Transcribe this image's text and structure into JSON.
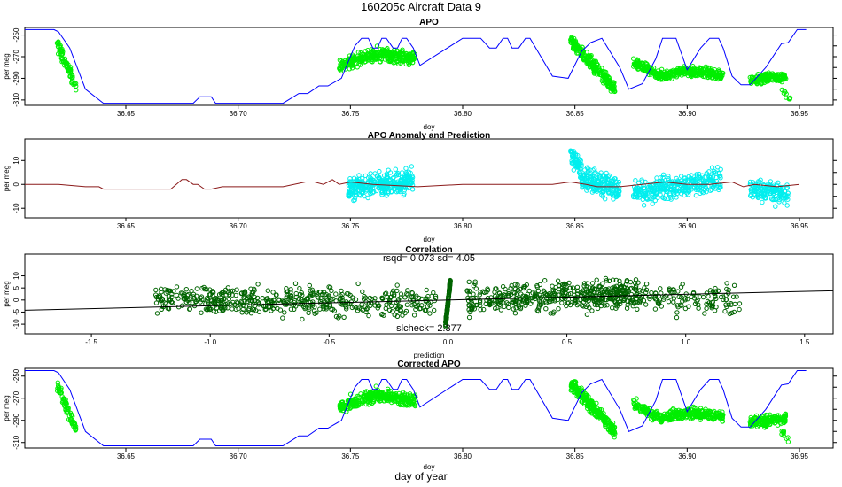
{
  "figure": {
    "title": "160205c   Aircraft Data 9",
    "xlabel": "day of year"
  },
  "chart_data": [
    {
      "id": "apo",
      "type": "scatter",
      "title": "APO",
      "xlabel": "doy",
      "ylabel": "per meg",
      "xlim": [
        36.605,
        36.965
      ],
      "ylim": [
        -315,
        -243
      ],
      "xticks": [
        36.65,
        36.7,
        36.75,
        36.8,
        36.85,
        36.9,
        36.95
      ],
      "yticks": [
        -250,
        -270,
        -290,
        -310
      ],
      "right_ticks": [
        -250,
        -260,
        -270,
        -280,
        -290,
        -300,
        -310
      ],
      "series": [
        {
          "kind": "line",
          "color": "#0000ff",
          "x": [
            36.605,
            36.618,
            36.62,
            36.625,
            36.632,
            36.64,
            36.68,
            36.683,
            36.688,
            36.69,
            36.72,
            36.727,
            36.731,
            36.736,
            36.74,
            36.746,
            36.75,
            36.752,
            36.755,
            36.758,
            36.76,
            36.762,
            36.764,
            36.766,
            36.769,
            36.771,
            36.773,
            36.775,
            36.778,
            36.781,
            36.8,
            36.808,
            36.812,
            36.815,
            36.818,
            36.82,
            36.822,
            36.825,
            36.828,
            36.83,
            36.84,
            36.847,
            36.853,
            36.857,
            36.862,
            36.87,
            36.874,
            36.88,
            36.886,
            36.889,
            36.895,
            36.9,
            36.906,
            36.91,
            36.914,
            36.916,
            36.92,
            36.924,
            36.928,
            36.935,
            36.942,
            36.945,
            36.949,
            36.953
          ],
          "y": [
            -245,
            -245,
            -247,
            -262,
            -300,
            -313,
            -313,
            -307,
            -307,
            -313,
            -313,
            -304,
            -304,
            -297,
            -297,
            -290,
            -270,
            -260,
            -253,
            -253,
            -262,
            -262,
            -253,
            -253,
            -262,
            -262,
            -253,
            -253,
            -262,
            -278,
            -253,
            -253,
            -262,
            -262,
            -253,
            -253,
            -262,
            -262,
            -253,
            -253,
            -288,
            -290,
            -265,
            -257,
            -253,
            -280,
            -300,
            -295,
            -272,
            -253,
            -253,
            -282,
            -262,
            -253,
            -253,
            -262,
            -288,
            -296,
            -296,
            -280,
            -258,
            -257,
            -245,
            -245
          ]
        },
        {
          "kind": "points",
          "color": "#00ee00",
          "clusters": [
            {
              "x0": 36.619,
              "x1": 36.628,
              "ys": [
                [
                  -257,
                  -298
                ]
              ],
              "n": 80,
              "spread": 5
            },
            {
              "x0": 36.745,
              "x1": 36.779,
              "ys": [
                [
                  -278,
                  -267
                ],
                [
                  -267,
                  -272
                ]
              ],
              "n": 350,
              "spread": 5
            },
            {
              "x0": 36.848,
              "x1": 36.868,
              "ys": [
                [
                  -256,
                  -300
                ]
              ],
              "n": 260,
              "spread": 5
            },
            {
              "x0": 36.876,
              "x1": 36.9,
              "ys": [
                [
                  -275,
                  -288
                ],
                [
                  -288,
                  -283
                ]
              ],
              "n": 220,
              "spread": 4
            },
            {
              "x0": 36.9,
              "x1": 36.916,
              "ys": [
                [
                  -283,
                  -287
                ]
              ],
              "n": 150,
              "spread": 4
            },
            {
              "x0": 36.928,
              "x1": 36.944,
              "ys": [
                [
                  -292,
                  -288
                ]
              ],
              "n": 160,
              "spread": 4
            },
            {
              "x0": 36.942,
              "x1": 36.946,
              "ys": [
                [
                  -300,
                  -310
                ]
              ],
              "n": 10,
              "spread": 3
            }
          ]
        }
      ]
    },
    {
      "id": "anomaly",
      "type": "scatter",
      "title": "APO Anomaly and Prediction",
      "xlabel": "doy",
      "ylabel": "per meg",
      "xlim": [
        36.605,
        36.965
      ],
      "ylim": [
        -14,
        19
      ],
      "xticks": [
        36.65,
        36.7,
        36.75,
        36.8,
        36.85,
        36.9,
        36.95
      ],
      "yticks": [
        10,
        0,
        -10
      ],
      "right_ticks": [
        10,
        5,
        0,
        -5,
        -10
      ],
      "series": [
        {
          "kind": "line",
          "color": "#8b1a1a",
          "x": [
            36.605,
            36.62,
            36.632,
            36.638,
            36.64,
            36.67,
            36.675,
            36.677,
            36.68,
            36.682,
            36.685,
            36.688,
            36.693,
            36.7,
            36.72,
            36.73,
            36.734,
            36.738,
            36.742,
            36.745,
            36.75,
            36.76,
            36.78,
            36.8,
            36.82,
            36.84,
            36.848,
            36.855,
            36.86,
            36.87,
            36.88,
            36.89,
            36.9,
            36.91,
            36.92,
            36.925,
            36.93,
            36.94,
            36.95
          ],
          "y": [
            0,
            0,
            -1,
            -1,
            -2,
            -2,
            2,
            2,
            0,
            0,
            -2,
            -2,
            -1,
            -1,
            -1,
            1,
            1,
            0,
            2,
            0,
            1,
            0,
            -1,
            0,
            0,
            0,
            1,
            0,
            -1,
            -1,
            0,
            1,
            0,
            0,
            1,
            -1,
            0,
            -1,
            0
          ]
        },
        {
          "kind": "points",
          "color": "#00eeee",
          "clusters": [
            {
              "x0": 36.749,
              "x1": 36.778,
              "ys": [
                [
                  -2,
                  2
                ]
              ],
              "n": 330,
              "spread": 4
            },
            {
              "x0": 36.848,
              "x1": 36.853,
              "ys": [
                [
                  13,
                  6
                ]
              ],
              "n": 60,
              "spread": 4
            },
            {
              "x0": 36.853,
              "x1": 36.87,
              "ys": [
                [
                  3,
                  -2
                ]
              ],
              "n": 200,
              "spread": 4
            },
            {
              "x0": 36.876,
              "x1": 36.915,
              "ys": [
                [
                  -4,
                  2
                ]
              ],
              "n": 330,
              "spread": 4
            },
            {
              "x0": 36.928,
              "x1": 36.945,
              "ys": [
                [
                  -2,
                  -4
                ]
              ],
              "n": 150,
              "spread": 4
            }
          ]
        }
      ]
    },
    {
      "id": "correlation",
      "type": "scatter",
      "title": "Correlation",
      "xlabel": "prediction",
      "ylabel": "per meg",
      "xlim": [
        -1.78,
        1.62
      ],
      "ylim": [
        -14,
        19
      ],
      "xticks": [
        -1.5,
        -1.0,
        -0.5,
        0.0,
        0.5,
        1.0,
        1.5
      ],
      "yticks": [
        10,
        5,
        0,
        -5,
        -10
      ],
      "annotations": {
        "stats": "rsqd= 0.073 sd= 4.05",
        "slope": "slcheck= 2.377"
      },
      "fit_line": {
        "slope": 2.377,
        "intercept": 0,
        "color": "#000000"
      },
      "series": [
        {
          "kind": "points",
          "color": "#006400",
          "clusters": [
            {
              "x0": -1.23,
              "x1": -0.05,
              "ys": [
                [
                  0,
                  -1
                ]
              ],
              "n": 520,
              "spread": 5
            },
            {
              "x0": 0.08,
              "x1": 0.8,
              "ys": [
                [
                  0,
                  3
                ]
              ],
              "n": 420,
              "spread": 5
            },
            {
              "x0": 0.6,
              "x1": 1.23,
              "ys": [
                [
                  3,
                  -1
                ]
              ],
              "n": 200,
              "spread": 5
            },
            {
              "x0": -0.01,
              "x1": 0.01,
              "ys": [
                [
                  -10,
                  8
                ]
              ],
              "n": 150,
              "spread": 1
            }
          ]
        }
      ]
    },
    {
      "id": "corrected",
      "type": "scatter",
      "title": "Corrected APO",
      "xlabel": "doy",
      "ylabel": "per meg",
      "xlim": [
        36.605,
        36.965
      ],
      "ylim": [
        -315,
        -243
      ],
      "xticks": [
        36.65,
        36.7,
        36.75,
        36.8,
        36.85,
        36.9,
        36.95
      ],
      "yticks": [
        -250,
        -270,
        -290,
        -310
      ],
      "right_ticks": [
        -250,
        -260,
        -270,
        -280,
        -290,
        -300,
        -310
      ],
      "series": [
        {
          "kind": "line",
          "color": "#0000ff",
          "x": [
            36.605,
            36.618,
            36.62,
            36.625,
            36.632,
            36.64,
            36.68,
            36.683,
            36.688,
            36.69,
            36.72,
            36.727,
            36.731,
            36.736,
            36.74,
            36.746,
            36.75,
            36.752,
            36.755,
            36.758,
            36.76,
            36.762,
            36.764,
            36.766,
            36.769,
            36.771,
            36.773,
            36.775,
            36.778,
            36.781,
            36.8,
            36.808,
            36.812,
            36.815,
            36.818,
            36.82,
            36.822,
            36.825,
            36.828,
            36.83,
            36.84,
            36.847,
            36.853,
            36.857,
            36.862,
            36.87,
            36.874,
            36.88,
            36.886,
            36.889,
            36.895,
            36.9,
            36.906,
            36.91,
            36.914,
            36.916,
            36.92,
            36.924,
            36.928,
            36.935,
            36.942,
            36.945,
            36.949,
            36.953
          ],
          "y": [
            -245,
            -245,
            -247,
            -262,
            -300,
            -313,
            -313,
            -307,
            -307,
            -313,
            -313,
            -304,
            -304,
            -297,
            -297,
            -290,
            -270,
            -260,
            -253,
            -253,
            -262,
            -262,
            -253,
            -253,
            -262,
            -262,
            -253,
            -253,
            -262,
            -278,
            -253,
            -253,
            -262,
            -262,
            -253,
            -253,
            -262,
            -262,
            -253,
            -253,
            -288,
            -290,
            -265,
            -257,
            -253,
            -280,
            -300,
            -295,
            -272,
            -253,
            -253,
            -282,
            -262,
            -253,
            -253,
            -262,
            -288,
            -296,
            -296,
            -280,
            -258,
            -257,
            -245,
            -245
          ]
        },
        {
          "kind": "points",
          "color": "#00ee00",
          "clusters": [
            {
              "x0": 36.619,
              "x1": 36.628,
              "ys": [
                [
                  -257,
                  -298
                ]
              ],
              "n": 80,
              "spread": 5
            },
            {
              "x0": 36.745,
              "x1": 36.779,
              "ys": [
                [
                  -278,
                  -267
                ],
                [
                  -267,
                  -272
                ]
              ],
              "n": 350,
              "spread": 5
            },
            {
              "x0": 36.848,
              "x1": 36.868,
              "ys": [
                [
                  -256,
                  -300
                ]
              ],
              "n": 260,
              "spread": 5
            },
            {
              "x0": 36.876,
              "x1": 36.9,
              "ys": [
                [
                  -275,
                  -288
                ],
                [
                  -288,
                  -283
                ]
              ],
              "n": 220,
              "spread": 4
            },
            {
              "x0": 36.9,
              "x1": 36.916,
              "ys": [
                [
                  -283,
                  -287
                ]
              ],
              "n": 150,
              "spread": 4
            },
            {
              "x0": 36.928,
              "x1": 36.944,
              "ys": [
                [
                  -292,
                  -288
                ]
              ],
              "n": 160,
              "spread": 4
            },
            {
              "x0": 36.942,
              "x1": 36.946,
              "ys": [
                [
                  -300,
                  -310
                ]
              ],
              "n": 10,
              "spread": 3
            }
          ]
        }
      ]
    }
  ]
}
